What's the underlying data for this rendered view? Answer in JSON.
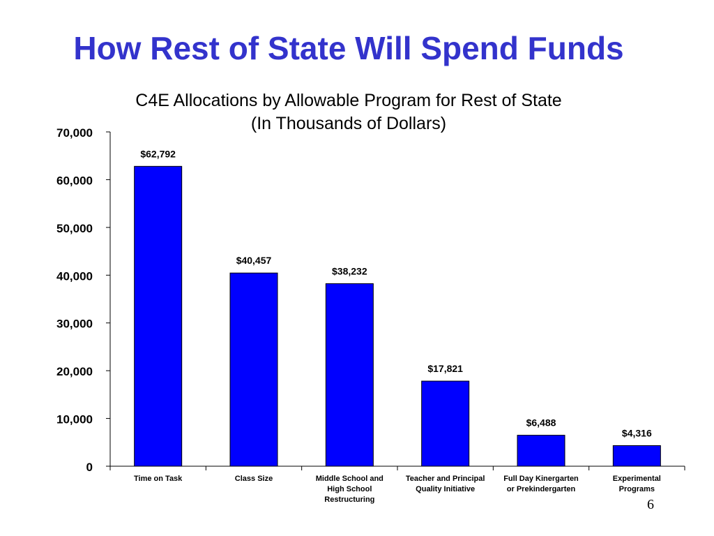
{
  "slide": {
    "title": "How Rest of State Will Spend Funds",
    "page_number": "6",
    "title_color": "#3333cc"
  },
  "chart_data": {
    "type": "bar",
    "title": "C4E Allocations by Allowable Program for Rest of State",
    "subtitle": "(In Thousands of Dollars)",
    "categories": [
      [
        "Time on Task"
      ],
      [
        "Class Size"
      ],
      [
        "Middle School and",
        "High School",
        "Restructuring"
      ],
      [
        "Teacher and Principal",
        "Quality Initiative"
      ],
      [
        "Full Day Kinergarten",
        "or Prekindergarten"
      ],
      [
        "Experimental",
        "Programs"
      ]
    ],
    "values": [
      62792,
      40457,
      38232,
      17821,
      6488,
      4316
    ],
    "data_labels": [
      "$62,792",
      "$40,457",
      "$38,232",
      "$17,821",
      "$6,488",
      "$4,316"
    ],
    "y_ticks": [
      0,
      10000,
      20000,
      30000,
      40000,
      50000,
      60000,
      70000
    ],
    "y_tick_labels": [
      "0",
      "10,000",
      "20,000",
      "30,000",
      "40,000",
      "50,000",
      "60,000",
      "70,000"
    ],
    "ylim": [
      0,
      70000
    ],
    "bar_color": "#0000ff",
    "grid": false,
    "legend": "none"
  }
}
